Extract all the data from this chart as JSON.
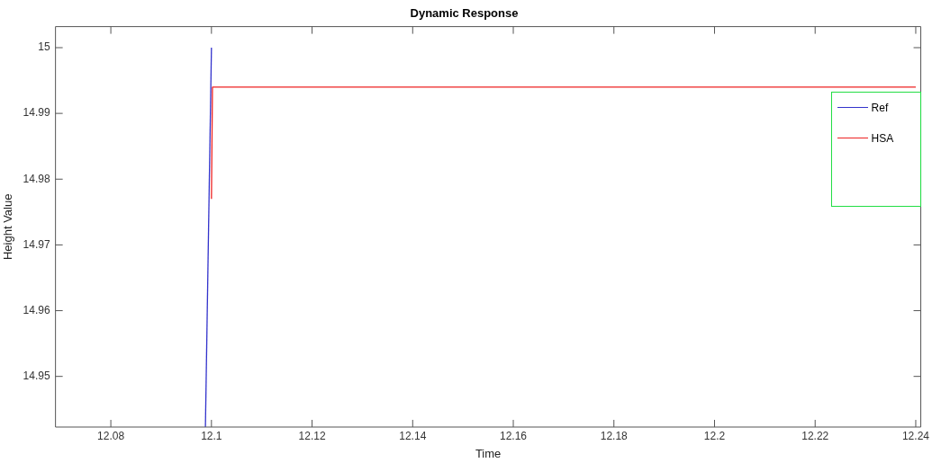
{
  "chart_data": {
    "type": "line",
    "title": "Dynamic Response",
    "xlabel": "Time",
    "ylabel": "Height Value",
    "xlim": [
      12.069,
      12.241
    ],
    "ylim": [
      14.9423,
      15.0032
    ],
    "xticks": [
      12.08,
      12.1,
      12.12,
      12.14,
      12.16,
      12.18,
      12.2,
      12.22,
      12.24
    ],
    "yticks": [
      14.95,
      14.96,
      14.97,
      14.98,
      14.99,
      15
    ],
    "grid": false,
    "legend": "right",
    "marker": "none",
    "line_style": "solid",
    "series": [
      {
        "name": "Ref",
        "color": "#3333cc",
        "x": [
          12.0988,
          12.1
        ],
        "values": [
          14.9423,
          15.0
        ]
      },
      {
        "name": "HSA",
        "color": "#ee2222",
        "x": [
          12.1,
          12.1002,
          12.24
        ],
        "values": [
          14.977,
          14.994,
          14.994
        ]
      }
    ]
  }
}
